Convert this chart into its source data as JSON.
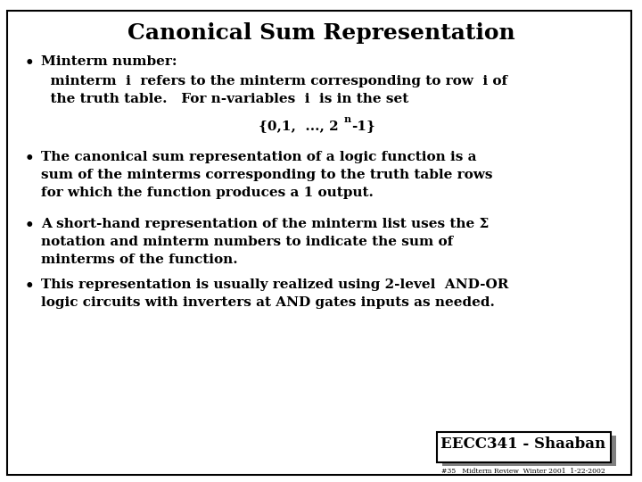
{
  "title": "Canonical Sum Representation",
  "background_color": "#ffffff",
  "border_color": "#000000",
  "title_fontsize": 18,
  "body_fontsize": 11,
  "font_family": "DejaVu Serif",
  "bullet1_header": "Minterm number:",
  "bullet1_line1": "  minterm  i  refers to the minterm corresponding to row  i of",
  "bullet1_line2": "  the truth table.   For n-variables  i  is in the set",
  "bullet1_formula_pre": "{0,1,  ..., 2",
  "bullet1_formula_sup": "n",
  "bullet1_formula_post": "-1}",
  "bullet2_line1": "The canonical sum representation of a logic function is a",
  "bullet2_line2": "sum of the minterms corresponding to the truth table rows",
  "bullet2_line3": "for which the function produces a 1 output.",
  "bullet3_line1": "A short-hand representation of the minterm list uses the Σ",
  "bullet3_line2": "notation and minterm numbers to indicate the sum of",
  "bullet3_line3": "minterms of the function.",
  "bullet4_line1": "This representation is usually realized using 2-level  AND-OR",
  "bullet4_line2": "logic circuits with inverters at AND gates inputs as needed.",
  "footer_box_text": "EECC341 - Shaaban",
  "footer_small_text": "#35   Midterm Review  Winter 2001  1-22-2002"
}
